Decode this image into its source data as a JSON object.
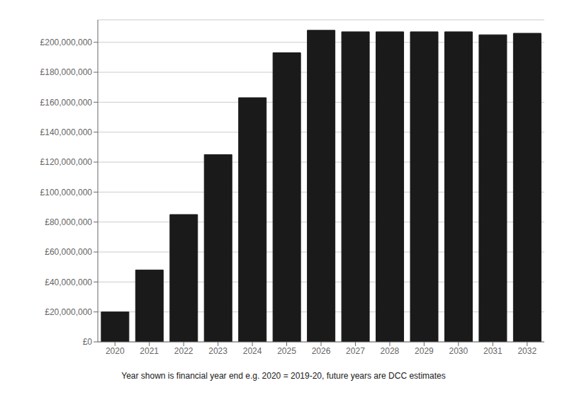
{
  "chart_data": {
    "type": "bar",
    "categories": [
      "2020",
      "2021",
      "2022",
      "2023",
      "2024",
      "2025",
      "2026",
      "2027",
      "2028",
      "2029",
      "2030",
      "2031",
      "2032"
    ],
    "values": [
      20000000,
      48000000,
      85000000,
      125000000,
      163000000,
      193000000,
      208000000,
      207000000,
      207000000,
      207000000,
      207000000,
      205000000,
      206000000
    ],
    "color": "#1a1a1a",
    "ylim": [
      0,
      215000000
    ],
    "yticks": [
      {
        "value": 0,
        "label": "£0"
      },
      {
        "value": 20000000,
        "label": "£20,000,000"
      },
      {
        "value": 40000000,
        "label": "£40,000,000"
      },
      {
        "value": 60000000,
        "label": "£60,000,000"
      },
      {
        "value": 80000000,
        "label": "£80,000,000"
      },
      {
        "value": 100000000,
        "label": "£100,000,000"
      },
      {
        "value": 120000000,
        "label": "£120,000,000"
      },
      {
        "value": 140000000,
        "label": "£140,000,000"
      },
      {
        "value": 160000000,
        "label": "£160,000,000"
      },
      {
        "value": 180000000,
        "label": "£180,000,000"
      },
      {
        "value": 200000000,
        "label": "£200,000,000"
      }
    ],
    "grid": true,
    "annotations": [
      "Year shown is financial year end e.g. 2020 = 2019-20, future years are DCC estimates"
    ]
  }
}
